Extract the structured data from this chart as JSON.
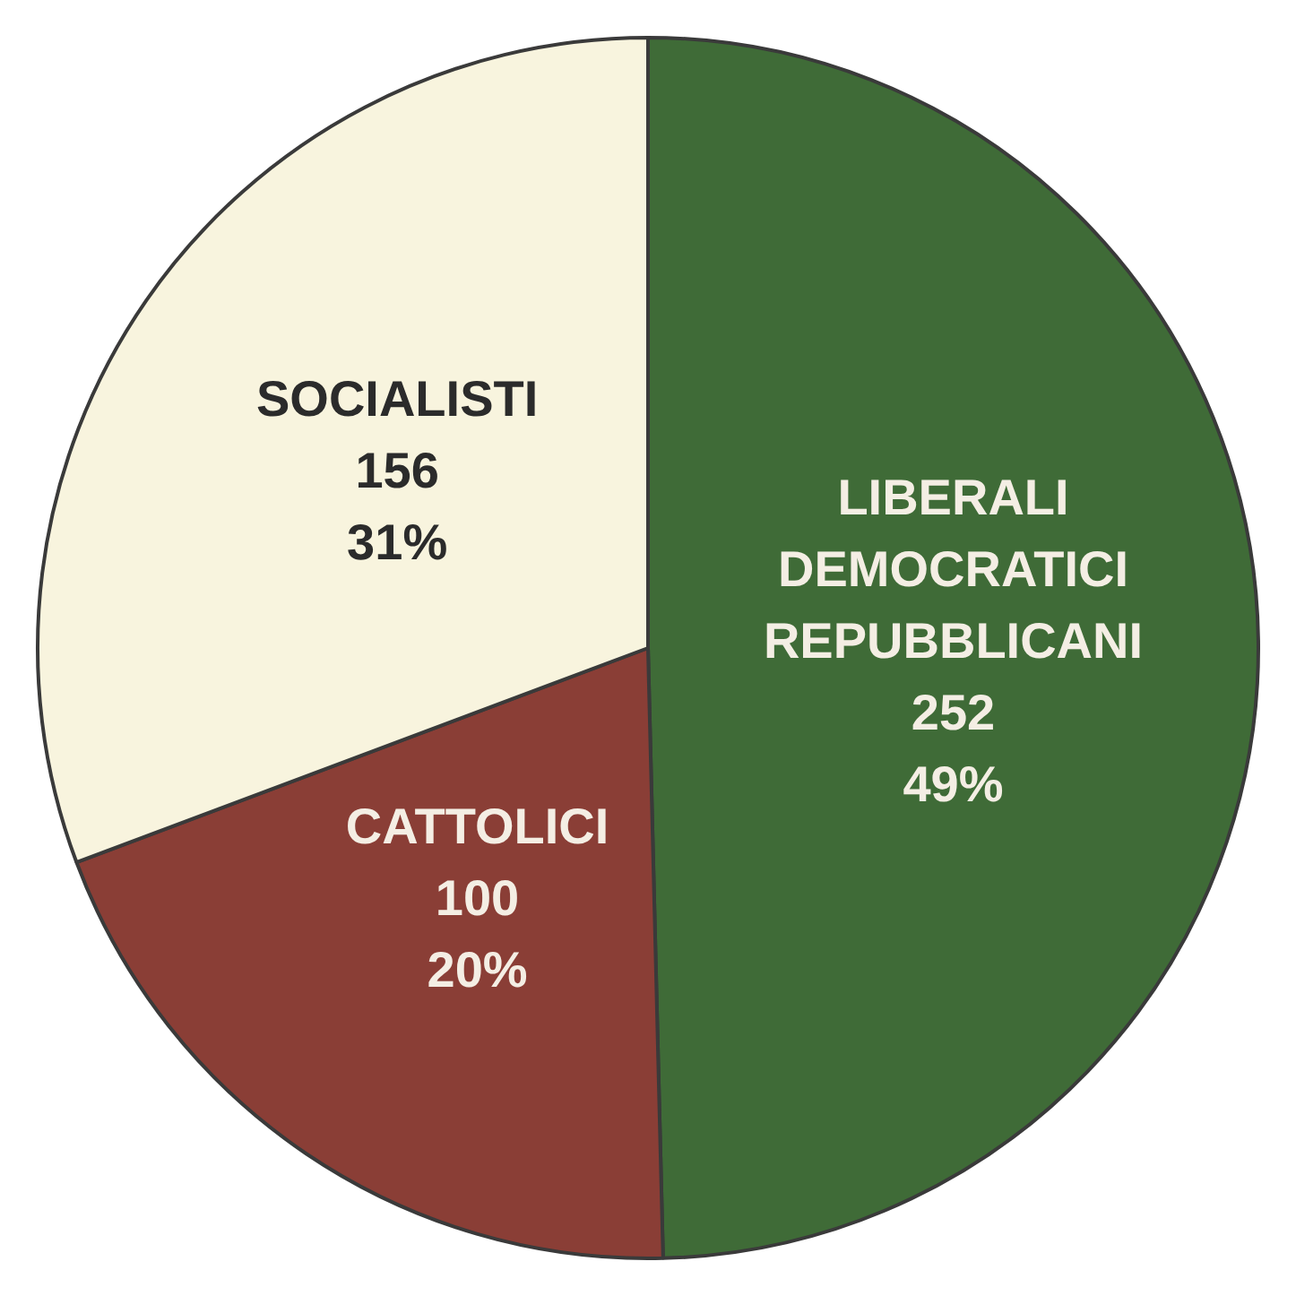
{
  "chart_data": {
    "type": "pie",
    "categories": [
      "LIBERALI\nDEMOCRATICI\nREPUBBLICANI",
      "CATTOLICI",
      "SOCIALISTI"
    ],
    "values": [
      252,
      100,
      156
    ],
    "colors": [
      "#3f6b37",
      "#8a3e36",
      "#f8f4de"
    ],
    "value_labels": [
      "252\n49%",
      "100\n20%",
      "156\n31%"
    ],
    "legend": false
  }
}
